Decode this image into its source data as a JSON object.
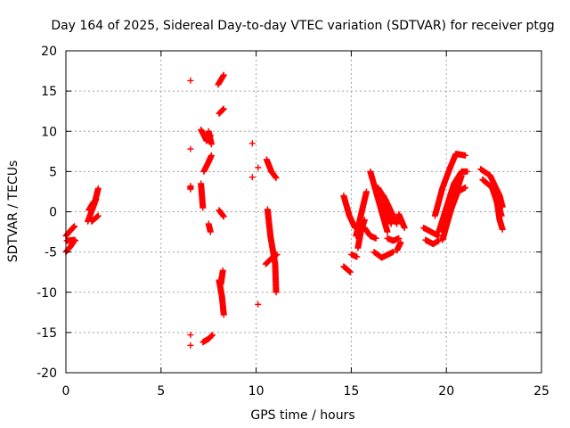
{
  "chart_data": {
    "type": "scatter",
    "title": "Day 164 of 2025, Sidereal Day-to-day VTEC variation (SDTVAR) for receiver ptgg",
    "xlabel": "GPS time / hours",
    "ylabel": "SDTVAR / TECUs",
    "xlim": [
      0,
      25
    ],
    "ylim": [
      -20,
      20
    ],
    "x_ticks": [
      0,
      5,
      10,
      15,
      20,
      25
    ],
    "y_ticks": [
      -20,
      -15,
      -10,
      -5,
      0,
      5,
      10,
      15,
      20
    ],
    "x_tick_labels": [
      "0",
      "5",
      "10",
      "15",
      "20",
      "25"
    ],
    "y_tick_labels": [
      "-20",
      "-15",
      "-10",
      "-5",
      "0",
      "5",
      "10",
      "15",
      "20"
    ],
    "grid": true,
    "marker": "+",
    "marker_color": "#ff0000",
    "segments": [
      {
        "name": "arc-01",
        "points": [
          [
            0.0,
            -3.0
          ],
          [
            0.25,
            -2.3
          ],
          [
            0.45,
            -1.8
          ]
        ]
      },
      {
        "name": "arc-02",
        "points": [
          [
            0.0,
            -5.0
          ],
          [
            0.25,
            -4.3
          ],
          [
            0.45,
            -3.5
          ]
        ]
      },
      {
        "name": "arc-03",
        "points": [
          [
            0.05,
            -3.6
          ],
          [
            0.4,
            -3.5
          ],
          [
            0.5,
            -3.6
          ]
        ]
      },
      {
        "name": "arc-04",
        "points": [
          [
            1.15,
            -1.2
          ],
          [
            1.5,
            1.0
          ],
          [
            1.7,
            2.9
          ]
        ]
      },
      {
        "name": "arc-05",
        "points": [
          [
            1.2,
            0.2
          ],
          [
            1.45,
            1.2
          ],
          [
            1.6,
            1.5
          ]
        ]
      },
      {
        "name": "arc-06",
        "points": [
          [
            1.35,
            -1.2
          ],
          [
            1.7,
            -0.5
          ]
        ]
      },
      {
        "name": "arc-07",
        "points": [
          [
            6.55,
            16.3
          ]
        ]
      },
      {
        "name": "arc-08",
        "points": [
          [
            6.55,
            7.8
          ]
        ]
      },
      {
        "name": "arc-09",
        "points": [
          [
            6.55,
            3.2
          ],
          [
            6.55,
            2.8
          ]
        ]
      },
      {
        "name": "arc-10",
        "points": [
          [
            6.55,
            -15.3
          ]
        ]
      },
      {
        "name": "arc-11",
        "points": [
          [
            6.55,
            -16.6
          ]
        ]
      },
      {
        "name": "arc-12",
        "points": [
          [
            7.1,
            10.2
          ],
          [
            7.4,
            8.8
          ],
          [
            7.6,
            9.5
          ]
        ]
      },
      {
        "name": "arc-13",
        "points": [
          [
            7.5,
            10.0
          ],
          [
            7.65,
            8.4
          ]
        ]
      },
      {
        "name": "arc-14",
        "points": [
          [
            7.1,
            3.5
          ],
          [
            7.15,
            2.0
          ],
          [
            7.2,
            0.5
          ]
        ]
      },
      {
        "name": "arc-15",
        "points": [
          [
            7.25,
            5.0
          ],
          [
            7.5,
            6.2
          ],
          [
            7.65,
            7.0
          ]
        ]
      },
      {
        "name": "arc-16",
        "points": [
          [
            7.5,
            -1.5
          ],
          [
            7.6,
            -2.5
          ]
        ]
      },
      {
        "name": "arc-17",
        "points": [
          [
            7.2,
            -16.2
          ],
          [
            7.5,
            -15.8
          ],
          [
            7.7,
            -15.3
          ]
        ]
      },
      {
        "name": "arc-18",
        "points": [
          [
            8.0,
            15.8
          ],
          [
            8.3,
            17.0
          ]
        ]
      },
      {
        "name": "arc-19",
        "points": [
          [
            8.05,
            12.2
          ],
          [
            8.3,
            12.8
          ]
        ]
      },
      {
        "name": "arc-20",
        "points": [
          [
            8.05,
            0.2
          ],
          [
            8.3,
            -0.6
          ]
        ]
      },
      {
        "name": "arc-21",
        "points": [
          [
            8.05,
            -8.5
          ],
          [
            8.2,
            -10.5
          ],
          [
            8.3,
            -12.8
          ]
        ]
      },
      {
        "name": "arc-22",
        "points": [
          [
            8.25,
            -7.3
          ],
          [
            8.15,
            -9.0
          ]
        ]
      },
      {
        "name": "arc-23",
        "points": [
          [
            9.8,
            8.5
          ]
        ]
      },
      {
        "name": "arc-24",
        "points": [
          [
            9.8,
            4.3
          ]
        ]
      },
      {
        "name": "arc-25",
        "points": [
          [
            10.1,
            5.5
          ]
        ]
      },
      {
        "name": "arc-26",
        "points": [
          [
            10.1,
            -11.5
          ]
        ]
      },
      {
        "name": "arc-27",
        "points": [
          [
            10.55,
            6.5
          ],
          [
            10.8,
            5.0
          ],
          [
            11.05,
            4.2
          ]
        ]
      },
      {
        "name": "arc-28",
        "points": [
          [
            10.6,
            0.3
          ],
          [
            10.75,
            -3.0
          ],
          [
            11.0,
            -6.5
          ],
          [
            11.05,
            -10.0
          ]
        ]
      },
      {
        "name": "arc-29",
        "points": [
          [
            10.5,
            -6.5
          ],
          [
            10.8,
            -5.8
          ],
          [
            11.1,
            -5.3
          ]
        ]
      },
      {
        "name": "arc-30",
        "points": [
          [
            14.6,
            2.0
          ],
          [
            14.9,
            -0.5
          ],
          [
            15.2,
            -2.0
          ]
        ]
      },
      {
        "name": "arc-31",
        "points": [
          [
            14.6,
            -6.8
          ],
          [
            14.8,
            -7.2
          ],
          [
            14.95,
            -7.5
          ]
        ]
      },
      {
        "name": "arc-32",
        "points": [
          [
            15.0,
            -5.3
          ],
          [
            15.3,
            -5.6
          ]
        ]
      },
      {
        "name": "arc-33",
        "points": [
          [
            15.25,
            -3.0
          ],
          [
            15.5,
            -0.5
          ],
          [
            15.8,
            2.5
          ]
        ]
      },
      {
        "name": "arc-34",
        "points": [
          [
            15.35,
            -4.5
          ],
          [
            15.5,
            -2.5
          ],
          [
            15.7,
            -1.0
          ]
        ]
      },
      {
        "name": "arc-35",
        "points": [
          [
            15.7,
            -2.0
          ],
          [
            16.0,
            -3.0
          ],
          [
            16.3,
            -3.3
          ]
        ]
      },
      {
        "name": "arc-36",
        "points": [
          [
            16.0,
            5.0
          ],
          [
            16.3,
            2.5
          ],
          [
            16.6,
            0.0
          ],
          [
            16.9,
            -2.5
          ]
        ]
      },
      {
        "name": "arc-37",
        "points": [
          [
            16.2,
            -5.0
          ],
          [
            16.6,
            -5.7
          ],
          [
            17.2,
            -5.0
          ]
        ]
      },
      {
        "name": "arc-38",
        "points": [
          [
            16.7,
            2.0
          ],
          [
            16.9,
            0.0
          ],
          [
            17.1,
            -1.5
          ]
        ]
      },
      {
        "name": "arc-39",
        "points": [
          [
            16.4,
            3.0
          ],
          [
            16.8,
            1.5
          ],
          [
            17.1,
            0.0
          ],
          [
            17.4,
            -1.5
          ]
        ]
      },
      {
        "name": "arc-40",
        "points": [
          [
            16.9,
            -3.3
          ],
          [
            17.2,
            -3.6
          ],
          [
            17.5,
            -3.3
          ]
        ]
      },
      {
        "name": "arc-41",
        "points": [
          [
            17.4,
            -4.8
          ],
          [
            17.6,
            -3.8
          ]
        ]
      },
      {
        "name": "arc-42",
        "points": [
          [
            17.5,
            -0.3
          ],
          [
            17.8,
            -2.0
          ]
        ]
      },
      {
        "name": "arc-43",
        "points": [
          [
            18.8,
            -2.0
          ],
          [
            19.2,
            -2.5
          ],
          [
            19.6,
            -3.0
          ]
        ]
      },
      {
        "name": "arc-44",
        "points": [
          [
            18.9,
            -3.5
          ],
          [
            19.3,
            -4.0
          ],
          [
            19.6,
            -3.6
          ]
        ]
      },
      {
        "name": "arc-45",
        "points": [
          [
            19.4,
            -0.5
          ],
          [
            19.8,
            3.0
          ],
          [
            20.2,
            5.5
          ],
          [
            20.5,
            7.2
          ],
          [
            21.0,
            7.0
          ]
        ]
      },
      {
        "name": "arc-46",
        "points": [
          [
            19.6,
            -2.5
          ],
          [
            20.0,
            0.5
          ],
          [
            20.4,
            3.5
          ],
          [
            20.8,
            5.0
          ],
          [
            21.1,
            5.0
          ]
        ]
      },
      {
        "name": "arc-47",
        "points": [
          [
            19.8,
            -3.5
          ],
          [
            20.2,
            0.0
          ],
          [
            20.6,
            2.5
          ],
          [
            21.0,
            3.0
          ]
        ]
      },
      {
        "name": "arc-48",
        "points": [
          [
            19.9,
            -2.5
          ],
          [
            20.4,
            1.5
          ],
          [
            20.8,
            4.5
          ]
        ]
      },
      {
        "name": "arc-49",
        "points": [
          [
            21.8,
            5.3
          ],
          [
            22.3,
            4.5
          ],
          [
            22.8,
            2.0
          ],
          [
            22.95,
            0.6
          ]
        ]
      },
      {
        "name": "arc-50",
        "points": [
          [
            21.9,
            4.0
          ],
          [
            22.4,
            3.0
          ],
          [
            22.9,
            -0.5
          ]
        ]
      },
      {
        "name": "arc-51",
        "points": [
          [
            22.6,
            2.2
          ],
          [
            22.8,
            -1.0
          ],
          [
            22.95,
            -2.2
          ]
        ]
      }
    ]
  }
}
